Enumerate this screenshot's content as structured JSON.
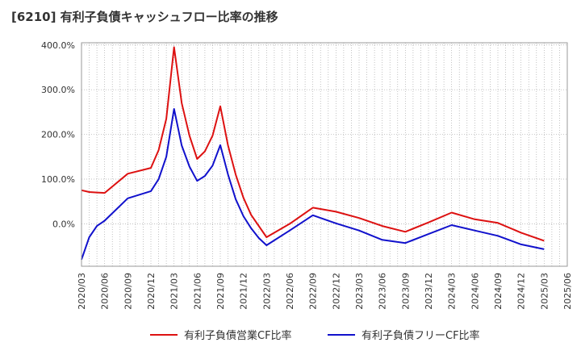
{
  "chart_data": {
    "type": "line",
    "title": "[6210]  有利子負債キャッシュフロー比率の推移",
    "xlabel": "",
    "ylabel": "",
    "ylim": [
      -95,
      405
    ],
    "x_ticks": [
      "2020/03",
      "2020/06",
      "2020/09",
      "2020/12",
      "2021/03",
      "2021/06",
      "2021/09",
      "2021/12",
      "2022/03",
      "2022/06",
      "2022/09",
      "2022/12",
      "2023/03",
      "2023/06",
      "2023/09",
      "2023/12",
      "2024/03",
      "2024/06",
      "2024/09",
      "2024/12",
      "2025/03",
      "2025/06"
    ],
    "y_ticks": [
      {
        "value": 0,
        "label": "0.0%"
      },
      {
        "value": 100,
        "label": "100.0%"
      },
      {
        "value": 200,
        "label": "200.0%"
      },
      {
        "value": 300,
        "label": "300.0%"
      },
      {
        "value": 400,
        "label": "400.0%"
      }
    ],
    "grid": true,
    "legend_position": "bottom",
    "series": [
      {
        "name": "有利子負債営業CF比率",
        "color": "#dd1111",
        "points": [
          [
            "2020/03",
            75
          ],
          [
            "2020/04",
            71
          ],
          [
            "2020/05",
            70
          ],
          [
            "2020/06",
            69
          ],
          [
            "2020/09",
            112
          ],
          [
            "2020/12",
            125
          ],
          [
            "2021/01",
            165
          ],
          [
            "2021/02",
            235
          ],
          [
            "2021/03",
            395
          ],
          [
            "2021/04",
            270
          ],
          [
            "2021/05",
            197
          ],
          [
            "2021/06",
            145
          ],
          [
            "2021/07",
            162
          ],
          [
            "2021/08",
            197
          ],
          [
            "2021/09",
            263
          ],
          [
            "2021/10",
            175
          ],
          [
            "2021/11",
            110
          ],
          [
            "2021/12",
            58
          ],
          [
            "2022/01",
            20
          ],
          [
            "2022/03",
            -30
          ],
          [
            "2022/06",
            0
          ],
          [
            "2022/09",
            36
          ],
          [
            "2022/12",
            27
          ],
          [
            "2023/03",
            13
          ],
          [
            "2023/06",
            -5
          ],
          [
            "2023/09",
            -18
          ],
          [
            "2023/12",
            3
          ],
          [
            "2024/03",
            25
          ],
          [
            "2024/06",
            10
          ],
          [
            "2024/09",
            2
          ],
          [
            "2024/12",
            -20
          ],
          [
            "2025/03",
            -38
          ]
        ]
      },
      {
        "name": "有利子負債フリーCF比率",
        "color": "#1111cc",
        "points": [
          [
            "2020/03",
            -80
          ],
          [
            "2020/04",
            -30
          ],
          [
            "2020/05",
            -5
          ],
          [
            "2020/06",
            7
          ],
          [
            "2020/09",
            57
          ],
          [
            "2020/12",
            73
          ],
          [
            "2021/01",
            100
          ],
          [
            "2021/02",
            150
          ],
          [
            "2021/03",
            257
          ],
          [
            "2021/04",
            175
          ],
          [
            "2021/05",
            128
          ],
          [
            "2021/06",
            96
          ],
          [
            "2021/07",
            107
          ],
          [
            "2021/08",
            130
          ],
          [
            "2021/09",
            176
          ],
          [
            "2021/10",
            110
          ],
          [
            "2021/11",
            55
          ],
          [
            "2021/12",
            17
          ],
          [
            "2022/01",
            -10
          ],
          [
            "2022/02",
            -32
          ],
          [
            "2022/03",
            -48
          ],
          [
            "2022/06",
            -15
          ],
          [
            "2022/09",
            19
          ],
          [
            "2022/12",
            1
          ],
          [
            "2023/03",
            -15
          ],
          [
            "2023/06",
            -36
          ],
          [
            "2023/09",
            -43
          ],
          [
            "2023/12",
            -23
          ],
          [
            "2024/03",
            -3
          ],
          [
            "2024/06",
            -15
          ],
          [
            "2024/09",
            -27
          ],
          [
            "2024/12",
            -46
          ],
          [
            "2025/03",
            -57
          ]
        ]
      }
    ]
  }
}
